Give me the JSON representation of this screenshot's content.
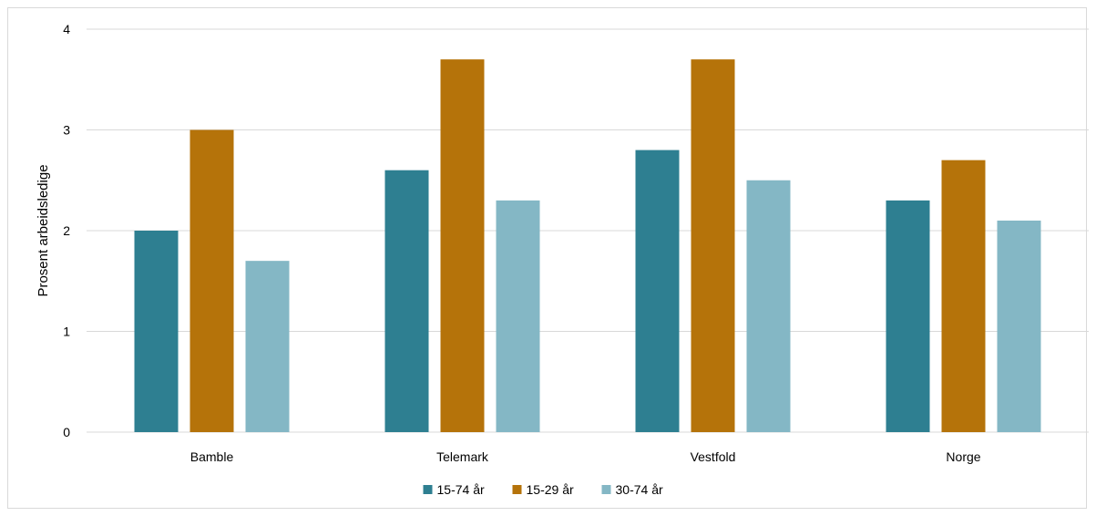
{
  "chart_data": {
    "type": "bar",
    "title": "",
    "xlabel": "",
    "ylabel": "Prosent arbeidsledige",
    "categories": [
      "Bamble",
      "Telemark",
      "Vestfold",
      "Norge"
    ],
    "ylim": [
      0,
      4
    ],
    "yticks": [
      "0",
      "1",
      "2",
      "3",
      "4"
    ],
    "grid": true,
    "legend_position": "bottom",
    "series": [
      {
        "name": "15-74 år",
        "color": "#2e7f91",
        "values": [
          2.0,
          2.6,
          2.8,
          2.3
        ]
      },
      {
        "name": "15-29 år",
        "color": "#b5730a",
        "values": [
          3.0,
          3.7,
          3.7,
          2.7
        ]
      },
      {
        "name": "30-74 år",
        "color": "#84b7c5",
        "values": [
          1.7,
          2.3,
          2.5,
          2.1
        ]
      }
    ]
  }
}
